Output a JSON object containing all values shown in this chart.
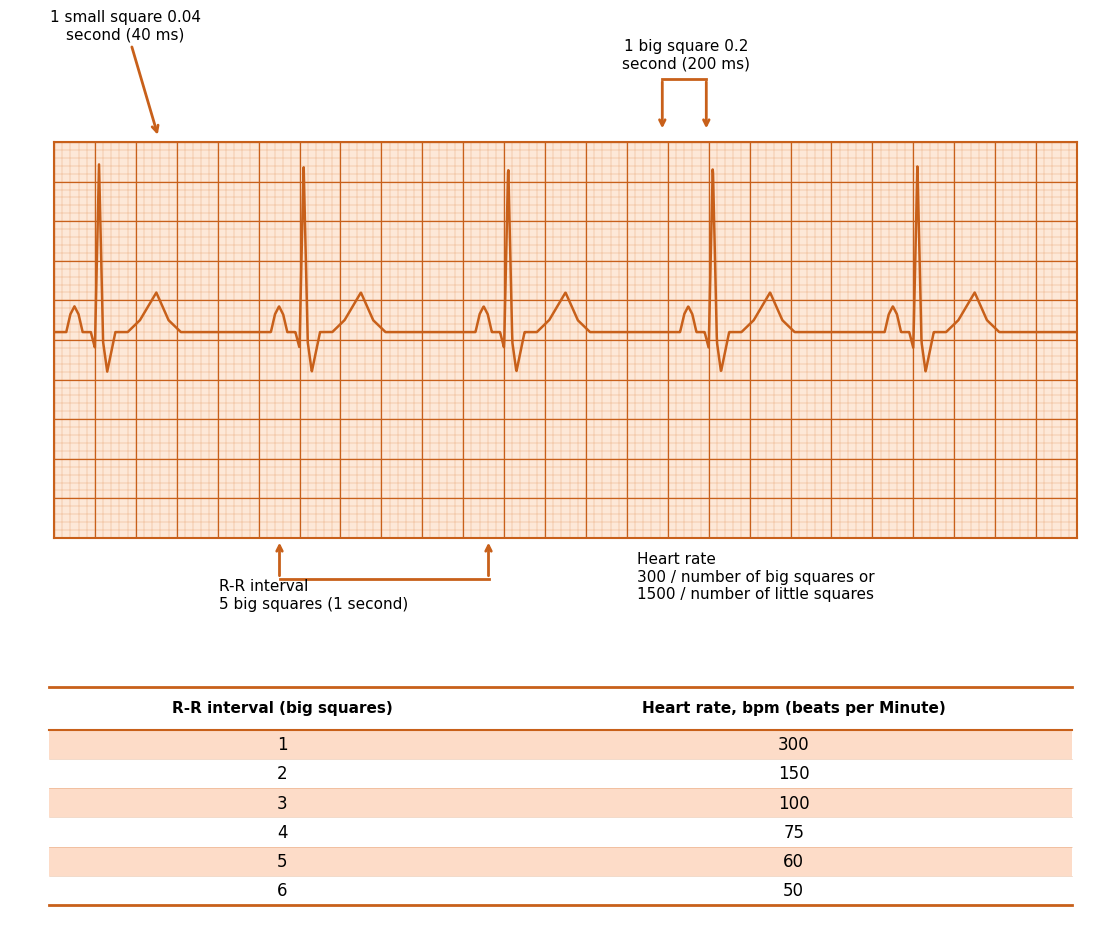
{
  "ecg_color": "#C8601A",
  "grid_bg": "#FDE8D8",
  "grid_minor_color": "#E8A070",
  "grid_major_color": "#C8601A",
  "arrow_color": "#C8601A",
  "table_row_odd": "#FDDCC8",
  "table_border_color": "#C8601A",
  "annotation_small_square_text": "1 small square 0.04\nsecond (40 ms)",
  "annotation_big_square_text": "1 big square 0.2\nsecond (200 ms)",
  "annotation_rr_text": "R-R interval\n5 big squares (1 second)",
  "annotation_hr_text": "Heart rate\n300 / number of big squares or\n1500 / number of little squares",
  "table_col1_header": "R-R interval (big squares)",
  "table_col2_header": "Heart rate, bpm (beats per Minute)",
  "table_data": [
    [
      1,
      300
    ],
    [
      2,
      150
    ],
    [
      3,
      100
    ],
    [
      4,
      75
    ],
    [
      5,
      60
    ],
    [
      6,
      50
    ]
  ]
}
